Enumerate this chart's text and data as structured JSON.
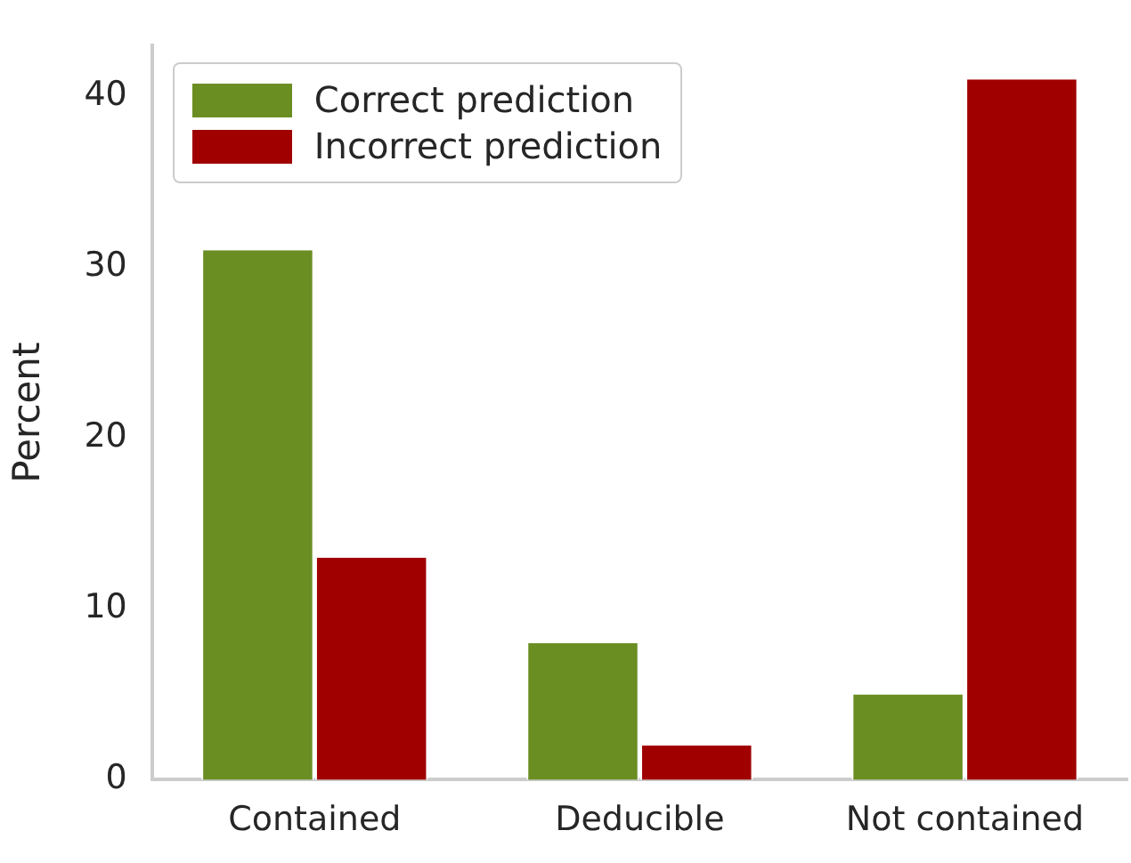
{
  "chart_data": {
    "type": "bar",
    "ylabel": "Percent",
    "categories": [
      "Contained",
      "Deducible",
      "Not contained"
    ],
    "series": [
      {
        "name": "Correct prediction",
        "color": "#6b8e23",
        "values": [
          31,
          8,
          5
        ]
      },
      {
        "name": "Incorrect prediction",
        "color": "#a00000",
        "values": [
          13,
          2,
          41
        ]
      }
    ],
    "ylim": [
      0,
      43
    ],
    "yticks": [
      0,
      10,
      20,
      30,
      40
    ],
    "grid": false,
    "legend": "top left"
  }
}
